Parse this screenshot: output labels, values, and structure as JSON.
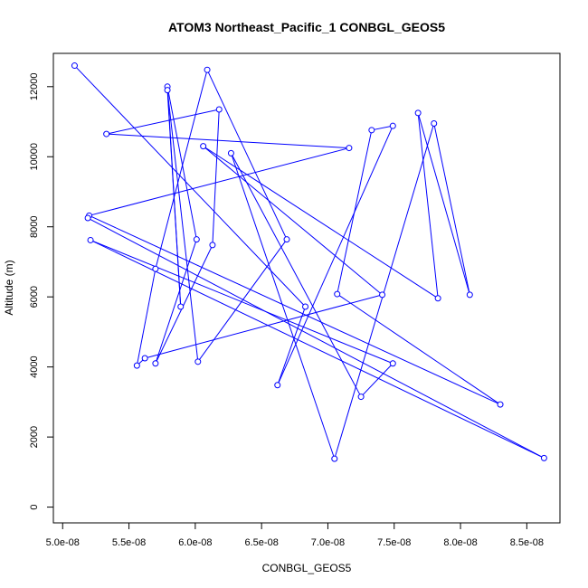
{
  "chart_data": {
    "type": "line",
    "title": "ATOM3 Northeast_Pacific_1 CONBGL_GEOS5",
    "xlabel": "CONBGL_GEOS5",
    "ylabel": "Altitude (m)",
    "xlim": [
      4.93e-08,
      8.75e-08
    ],
    "ylim": [
      -450,
      12950
    ],
    "x_ticks": [
      5e-08,
      5.5e-08,
      6e-08,
      6.5e-08,
      7e-08,
      7.5e-08,
      8e-08,
      8.5e-08
    ],
    "x_tick_labels": [
      "5.0e-08",
      "5.5e-08",
      "6.0e-08",
      "6.5e-08",
      "7.0e-08",
      "7.5e-08",
      "8.0e-08",
      "8.5e-08"
    ],
    "y_ticks": [
      0,
      2000,
      4000,
      6000,
      8000,
      10000,
      12000
    ],
    "y_tick_labels": [
      "0",
      "2000",
      "4000",
      "6000",
      "8000",
      "10000",
      "12000"
    ],
    "grid": false,
    "marker": "open-circle",
    "series": [
      {
        "color": "#0000ff",
        "points": [
          {
            "x": 5.09e-08,
            "y": 12600
          },
          {
            "x": 6.83e-08,
            "y": 5720
          },
          {
            "x": 6.62e-08,
            "y": 3480
          },
          {
            "x": 7.49e-08,
            "y": 10880
          },
          {
            "x": 7.33e-08,
            "y": 10760
          },
          {
            "x": 7.07e-08,
            "y": 6080
          },
          {
            "x": 8.3e-08,
            "y": 2930
          },
          {
            "x": 5.2e-08,
            "y": 8320
          },
          {
            "x": 7.16e-08,
            "y": 10250
          },
          {
            "x": 5.33e-08,
            "y": 10650
          },
          {
            "x": 6.18e-08,
            "y": 11350
          },
          {
            "x": 6.13e-08,
            "y": 7480
          },
          {
            "x": 5.7e-08,
            "y": 4100
          },
          {
            "x": 6.01e-08,
            "y": 7640
          },
          {
            "x": 5.79e-08,
            "y": 12000
          },
          {
            "x": 5.89e-08,
            "y": 5720
          },
          {
            "x": 5.79e-08,
            "y": 11900
          },
          {
            "x": 6.02e-08,
            "y": 4150
          },
          {
            "x": 6.69e-08,
            "y": 7640
          },
          {
            "x": 6.09e-08,
            "y": 12480
          },
          {
            "x": 5.7e-08,
            "y": 6800
          },
          {
            "x": 5.56e-08,
            "y": 4040
          },
          {
            "x": 5.62e-08,
            "y": 4250
          },
          {
            "x": 7.41e-08,
            "y": 6060
          },
          {
            "x": 6.06e-08,
            "y": 10300
          },
          {
            "x": 7.83e-08,
            "y": 5960
          },
          {
            "x": 7.68e-08,
            "y": 11250
          },
          {
            "x": 8.07e-08,
            "y": 6060
          },
          {
            "x": 7.8e-08,
            "y": 10950
          },
          {
            "x": 7.05e-08,
            "y": 1380
          },
          {
            "x": 6.27e-08,
            "y": 10100
          },
          {
            "x": 7.25e-08,
            "y": 3150
          },
          {
            "x": 7.49e-08,
            "y": 4100
          },
          {
            "x": 5.21e-08,
            "y": 7620
          },
          {
            "x": 8.63e-08,
            "y": 1400
          },
          {
            "x": 5.19e-08,
            "y": 8250
          }
        ]
      }
    ]
  }
}
